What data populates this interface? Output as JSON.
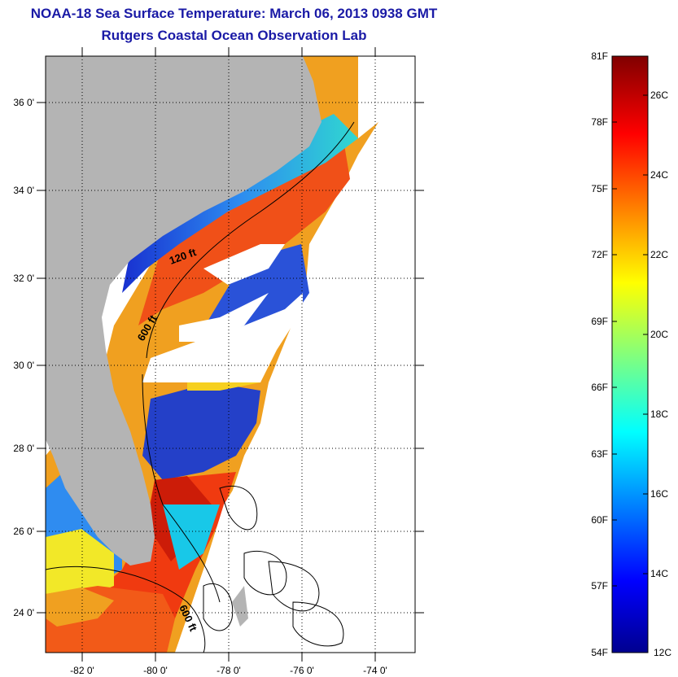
{
  "title": "NOAA-18 Sea Surface Temperature:  March 06, 2013 0938 GMT",
  "subtitle": "Rutgers Coastal Ocean Observation Lab",
  "map": {
    "lat_labels": [
      "36 0'",
      "34 0'",
      "32 0'",
      "30 0'",
      "28 0'",
      "26 0'",
      "24 0'"
    ],
    "lon_labels": [
      "-82 0'",
      "-80 0'",
      "-78 0'",
      "-76 0'",
      "-74 0'"
    ],
    "isobath_labels": [
      "120 ft",
      "600 ft",
      "600 ft"
    ],
    "colors": {
      "land": "#b4b4b4",
      "cold": "#1f3fd8",
      "warm": "#f03a10",
      "hot": "#c81a08"
    }
  },
  "colorbar": {
    "fahrenheit_labels": [
      "81F",
      "78F",
      "75F",
      "72F",
      "69F",
      "66F",
      "63F",
      "60F",
      "57F",
      "54F"
    ],
    "celsius_labels": [
      "26C",
      "24C",
      "22C",
      "20C",
      "18C",
      "16C",
      "14C",
      "12C"
    ]
  }
}
